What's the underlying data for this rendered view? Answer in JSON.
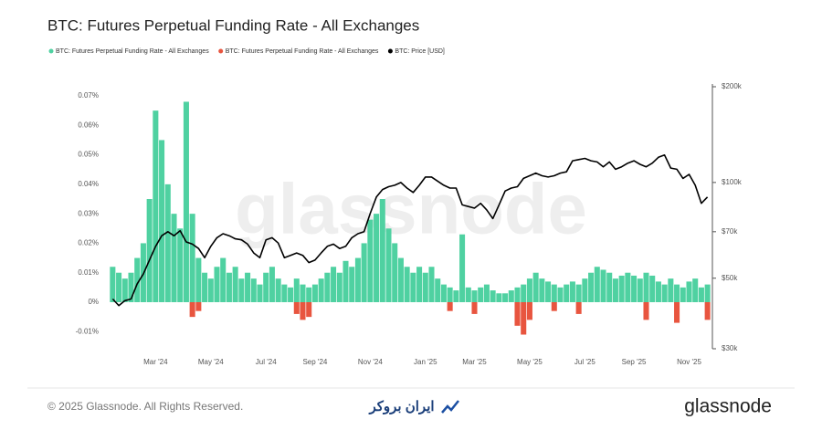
{
  "chart_data": {
    "type": "bar",
    "title": "BTC: Futures Perpetual Funding Rate - All Exchanges",
    "watermark": "glassnode",
    "categories": [
      null,
      null,
      null,
      null,
      null,
      null,
      null,
      "Mar '24",
      null,
      null,
      null,
      null,
      null,
      null,
      null,
      null,
      "May '24",
      null,
      null,
      null,
      null,
      null,
      null,
      null,
      null,
      "Jul '24",
      null,
      null,
      null,
      null,
      null,
      null,
      null,
      "Sep '24",
      null,
      null,
      null,
      null,
      null,
      null,
      null,
      null,
      "Nov '24",
      null,
      null,
      null,
      null,
      null,
      null,
      null,
      null,
      "Jan '25",
      null,
      null,
      null,
      null,
      null,
      null,
      null,
      "Mar '25",
      null,
      null,
      null,
      null,
      null,
      null,
      null,
      null,
      "May '25",
      null,
      null,
      null,
      null,
      null,
      null,
      null,
      null,
      "Jul '25",
      null,
      null,
      null,
      null,
      null,
      null,
      null,
      "Sep '25",
      null,
      null,
      null,
      null,
      null,
      null,
      null,
      null,
      "Nov '25",
      null,
      null,
      null
    ],
    "series": [
      {
        "name": "BTC: Futures Perpetual Funding Rate - All Exchanges",
        "color": "#4fd1a1",
        "values": [
          0.012,
          0.01,
          0.008,
          0.01,
          0.015,
          0.02,
          0.035,
          0.065,
          0.055,
          0.04,
          0.03,
          0.025,
          0.068,
          0.03,
          0.015,
          0.01,
          0.008,
          0.012,
          0.015,
          0.01,
          0.012,
          0.008,
          0.01,
          0.008,
          0.006,
          0.01,
          0.012,
          0.008,
          0.006,
          0.005,
          0.008,
          0.006,
          0.005,
          0.006,
          0.008,
          0.01,
          0.012,
          0.01,
          0.014,
          0.012,
          0.015,
          0.02,
          0.028,
          0.03,
          0.035,
          0.025,
          0.02,
          0.015,
          0.012,
          0.01,
          0.012,
          0.01,
          0.012,
          0.008,
          0.006,
          0.005,
          0.004,
          0.023,
          0.005,
          0.004,
          0.005,
          0.006,
          0.004,
          0.003,
          0.003,
          0.004,
          0.005,
          0.006,
          0.008,
          0.01,
          0.008,
          0.007,
          0.006,
          0.005,
          0.006,
          0.007,
          0.006,
          0.008,
          0.01,
          0.012,
          0.011,
          0.01,
          0.008,
          0.009,
          0.01,
          0.009,
          0.008,
          0.01,
          0.009,
          0.007,
          0.006,
          0.008,
          0.006,
          0.005,
          0.007,
          0.008,
          0.005,
          0.006
        ]
      },
      {
        "name": "BTC: Futures Perpetual Funding Rate - All Exchanges",
        "color": "#e8553f",
        "values": [
          null,
          null,
          null,
          null,
          null,
          null,
          null,
          null,
          null,
          null,
          null,
          null,
          null,
          -0.005,
          -0.003,
          null,
          null,
          null,
          null,
          null,
          null,
          null,
          null,
          null,
          null,
          null,
          null,
          null,
          null,
          null,
          -0.004,
          -0.006,
          -0.005,
          null,
          null,
          null,
          null,
          null,
          null,
          null,
          null,
          null,
          null,
          null,
          null,
          null,
          null,
          null,
          null,
          null,
          null,
          null,
          null,
          null,
          null,
          -0.003,
          null,
          null,
          null,
          -0.004,
          null,
          null,
          null,
          null,
          null,
          null,
          -0.008,
          -0.011,
          -0.006,
          null,
          null,
          null,
          -0.003,
          null,
          null,
          null,
          -0.004,
          null,
          null,
          null,
          null,
          null,
          null,
          null,
          null,
          null,
          null,
          -0.006,
          null,
          null,
          null,
          null,
          -0.007,
          null,
          null,
          null,
          null,
          -0.006
        ]
      },
      {
        "name": "BTC: Price [USD]",
        "color": "#000000",
        "type": "line",
        "axis": "y2",
        "values": [
          43000,
          41000,
          42500,
          43000,
          48000,
          51500,
          57000,
          63000,
          68000,
          70000,
          68000,
          70500,
          65000,
          64000,
          62000,
          58000,
          63000,
          67000,
          69000,
          68000,
          66500,
          66000,
          64000,
          60000,
          58000,
          66000,
          67000,
          64500,
          58000,
          59000,
          60000,
          59000,
          56000,
          57000,
          60000,
          63000,
          64000,
          62000,
          63000,
          67000,
          69000,
          70000,
          80000,
          90000,
          95000,
          97000,
          98000,
          100000,
          96000,
          93000,
          98000,
          104000,
          104000,
          101000,
          98000,
          96000,
          96000,
          85000,
          84000,
          83000,
          86000,
          82000,
          77000,
          85000,
          94000,
          96000,
          97000,
          103000,
          105000,
          107000,
          105000,
          104000,
          105000,
          107000,
          108000,
          117000,
          118000,
          119000,
          117000,
          116000,
          112000,
          116000,
          110000,
          112000,
          115000,
          117000,
          114000,
          112000,
          115000,
          120000,
          122000,
          111000,
          110000,
          103000,
          106000,
          98000,
          86000,
          90000
        ]
      }
    ],
    "ylim": [
      -0.0158,
      0.0731
    ],
    "yticks": [
      {
        "value": -0.01,
        "label": "-0.01%"
      },
      {
        "value": 0,
        "label": "0%"
      },
      {
        "value": 0.01,
        "label": "0.01%"
      },
      {
        "value": 0.02,
        "label": "0.02%"
      },
      {
        "value": 0.03,
        "label": "0.03%"
      },
      {
        "value": 0.04,
        "label": "0.04%"
      },
      {
        "value": 0.05,
        "label": "0.05%"
      },
      {
        "value": 0.06,
        "label": "0.06%"
      },
      {
        "value": 0.07,
        "label": "0.07%"
      }
    ],
    "y2lim": [
      30000,
      200000
    ],
    "y2log": true,
    "y2ticks": [
      {
        "value": 30000,
        "label": "$30k"
      },
      {
        "value": 50000,
        "label": "$50k"
      },
      {
        "value": 70000,
        "label": "$70k"
      },
      {
        "value": 100000,
        "label": "$100k"
      },
      {
        "value": 200000,
        "label": "$200k"
      }
    ],
    "grid": false,
    "legend": "top-left"
  },
  "footer": {
    "copyright": "© 2025 Glassnode. All Rights Reserved.",
    "partner": "ایران بروکر",
    "brand": "glassnode"
  }
}
